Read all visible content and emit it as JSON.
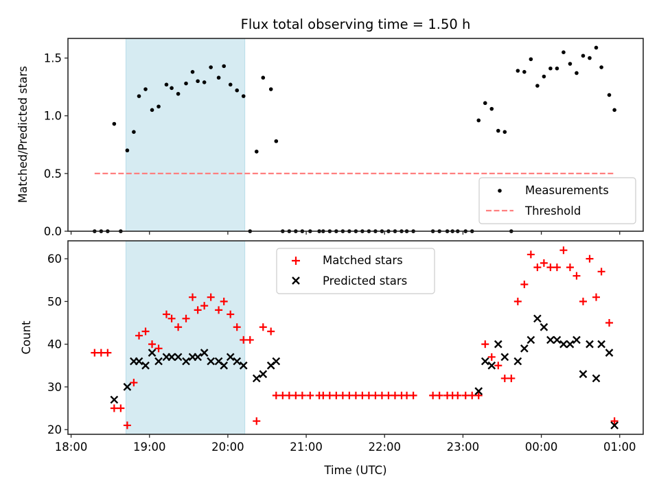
{
  "chart_data": [
    {
      "type": "scatter",
      "title": "Flux total observing time = 1.50 h",
      "xlabel": "",
      "ylabel": "Matched/Predicted stars",
      "ylim": [
        0,
        1.67
      ],
      "yticks": [
        0.0,
        0.5,
        1.0,
        1.5
      ],
      "ytick_labels": [
        "0.0",
        "0.5",
        "1.0",
        "1.5"
      ],
      "xlim_hours": [
        17.96,
        25.3
      ],
      "xticks_hours": [
        18,
        19,
        20,
        21,
        22,
        23,
        24,
        25
      ],
      "xtick_labels": [
        "18:00",
        "19:00",
        "20:00",
        "21:00",
        "22:00",
        "23:00",
        "00:00",
        "01:00"
      ],
      "show_xtick_labels": false,
      "grid": false,
      "shaded_span": {
        "start": "18:42",
        "end": "20:13",
        "color": "#add8e6"
      },
      "threshold": {
        "value": 0.5,
        "start": "18:18",
        "end": "00:56",
        "color": "#ff7f7f",
        "style": "dashed"
      },
      "legend": {
        "position": "lower-right",
        "entries": [
          {
            "label": "Measurements",
            "marker": "dot",
            "color": "#000000"
          },
          {
            "label": "Threshold",
            "marker": "dashed-line",
            "color": "#ff7f7f"
          }
        ]
      },
      "series": [
        {
          "name": "Measurements",
          "marker": "dot",
          "color": "#000000",
          "x": [
            "18:18",
            "18:23",
            "18:28",
            "18:33",
            "18:38",
            "18:43",
            "18:48",
            "18:52",
            "18:57",
            "19:02",
            "19:07",
            "19:13",
            "19:17",
            "19:22",
            "19:28",
            "19:33",
            "19:37",
            "19:42",
            "19:47",
            "19:53",
            "19:57",
            "20:02",
            "20:07",
            "20:12",
            "20:17",
            "20:22",
            "20:27",
            "20:33",
            "20:37",
            "20:42",
            "20:47",
            "20:52",
            "20:57",
            "21:03",
            "21:10",
            "21:13",
            "21:18",
            "21:23",
            "21:28",
            "21:33",
            "21:38",
            "21:43",
            "21:48",
            "21:53",
            "21:58",
            "22:03",
            "22:08",
            "22:13",
            "22:17",
            "22:22",
            "22:37",
            "22:42",
            "22:48",
            "22:52",
            "22:56",
            "23:02",
            "23:07",
            "23:12",
            "23:17",
            "23:22",
            "23:27",
            "23:32",
            "23:37",
            "23:42",
            "23:47",
            "23:52",
            "23:57",
            "00:02",
            "00:07",
            "00:12",
            "00:17",
            "00:22",
            "00:27",
            "00:32",
            "00:37",
            "00:42",
            "00:46",
            "00:52",
            "00:56"
          ],
          "y": [
            0,
            0,
            0,
            0.93,
            0,
            0.7,
            0.86,
            1.17,
            1.23,
            1.05,
            1.08,
            1.27,
            1.24,
            1.19,
            1.28,
            1.38,
            1.3,
            1.29,
            1.42,
            1.33,
            1.43,
            1.27,
            1.22,
            1.17,
            0,
            0.69,
            1.33,
            1.23,
            0.78,
            0,
            0,
            0,
            0,
            0,
            0,
            0,
            0,
            0,
            0,
            0,
            0,
            0,
            0,
            0,
            0,
            0,
            0,
            0,
            0,
            0,
            0,
            0,
            0,
            0,
            0,
            0,
            0,
            0.96,
            1.11,
            1.06,
            0.87,
            0.86,
            0,
            1.39,
            1.38,
            1.49,
            1.26,
            1.34,
            1.41,
            1.41,
            1.55,
            1.45,
            1.37,
            1.52,
            1.5,
            1.59,
            1.42,
            1.18,
            1.05
          ]
        }
      ]
    },
    {
      "type": "scatter",
      "title": "",
      "xlabel": "Time (UTC)",
      "ylabel": "Count",
      "ylim": [
        18.9,
        64.2
      ],
      "yticks": [
        20,
        30,
        40,
        50,
        60
      ],
      "ytick_labels": [
        "20",
        "30",
        "40",
        "50",
        "60"
      ],
      "xlim_hours": [
        17.96,
        25.3
      ],
      "xticks_hours": [
        18,
        19,
        20,
        21,
        22,
        23,
        24,
        25
      ],
      "xtick_labels": [
        "18:00",
        "19:00",
        "20:00",
        "21:00",
        "22:00",
        "23:00",
        "00:00",
        "01:00"
      ],
      "show_xtick_labels": true,
      "grid": false,
      "shaded_span": {
        "start": "18:42",
        "end": "20:13",
        "color": "#add8e6"
      },
      "legend": {
        "position": "upper-center",
        "entries": [
          {
            "label": "Matched stars",
            "marker": "plus",
            "color": "#ff0000"
          },
          {
            "label": "Predicted stars",
            "marker": "x",
            "color": "#000000"
          }
        ]
      },
      "series": [
        {
          "name": "Matched stars",
          "marker": "plus",
          "color": "#ff0000",
          "x": [
            "18:18",
            "18:23",
            "18:28",
            "18:33",
            "18:38",
            "18:43",
            "18:48",
            "18:52",
            "18:57",
            "19:02",
            "19:07",
            "19:13",
            "19:17",
            "19:22",
            "19:28",
            "19:33",
            "19:37",
            "19:42",
            "19:47",
            "19:53",
            "19:57",
            "20:02",
            "20:07",
            "20:12",
            "20:17",
            "20:22",
            "20:27",
            "20:33",
            "20:37",
            "20:42",
            "20:47",
            "20:52",
            "20:57",
            "21:03",
            "21:10",
            "21:13",
            "21:18",
            "21:23",
            "21:28",
            "21:33",
            "21:38",
            "21:43",
            "21:48",
            "21:53",
            "21:58",
            "22:03",
            "22:08",
            "22:13",
            "22:17",
            "22:22",
            "22:37",
            "22:42",
            "22:48",
            "22:52",
            "22:56",
            "23:02",
            "23:07",
            "23:12",
            "23:17",
            "23:22",
            "23:27",
            "23:32",
            "23:37",
            "23:42",
            "23:47",
            "23:52",
            "23:57",
            "00:02",
            "00:07",
            "00:12",
            "00:17",
            "00:22",
            "00:27",
            "00:32",
            "00:37",
            "00:42",
            "00:46",
            "00:52",
            "00:56"
          ],
          "y": [
            38,
            38,
            38,
            25,
            25,
            21,
            31,
            42,
            43,
            40,
            39,
            47,
            46,
            44,
            46,
            51,
            48,
            49,
            51,
            48,
            50,
            47,
            44,
            41,
            41,
            22,
            44,
            43,
            28,
            28,
            28,
            28,
            28,
            28,
            28,
            28,
            28,
            28,
            28,
            28,
            28,
            28,
            28,
            28,
            28,
            28,
            28,
            28,
            28,
            28,
            28,
            28,
            28,
            28,
            28,
            28,
            28,
            28,
            40,
            37,
            35,
            32,
            32,
            50,
            54,
            61,
            58,
            59,
            58,
            58,
            62,
            58,
            56,
            50,
            60,
            51,
            57,
            45,
            22
          ]
        },
        {
          "name": "Predicted stars",
          "marker": "x",
          "color": "#000000",
          "x": [
            "18:33",
            "18:43",
            "18:48",
            "18:52",
            "18:57",
            "19:02",
            "19:07",
            "19:13",
            "19:17",
            "19:22",
            "19:28",
            "19:33",
            "19:37",
            "19:42",
            "19:47",
            "19:53",
            "19:57",
            "20:02",
            "20:07",
            "20:12",
            "20:22",
            "20:27",
            "20:33",
            "20:37",
            "23:12",
            "23:17",
            "23:22",
            "23:27",
            "23:32",
            "23:42",
            "23:47",
            "23:52",
            "23:57",
            "00:02",
            "00:07",
            "00:12",
            "00:17",
            "00:22",
            "00:27",
            "00:32",
            "00:37",
            "00:42",
            "00:46",
            "00:52",
            "00:56"
          ],
          "y": [
            27,
            30,
            36,
            36,
            35,
            38,
            36,
            37,
            37,
            37,
            36,
            37,
            37,
            38,
            36,
            36,
            35,
            37,
            36,
            35,
            32,
            33,
            35,
            36,
            29,
            36,
            35,
            40,
            37,
            36,
            39,
            41,
            46,
            44,
            41,
            41,
            40,
            40,
            41,
            33,
            40,
            32,
            40,
            38,
            21
          ]
        }
      ]
    }
  ]
}
